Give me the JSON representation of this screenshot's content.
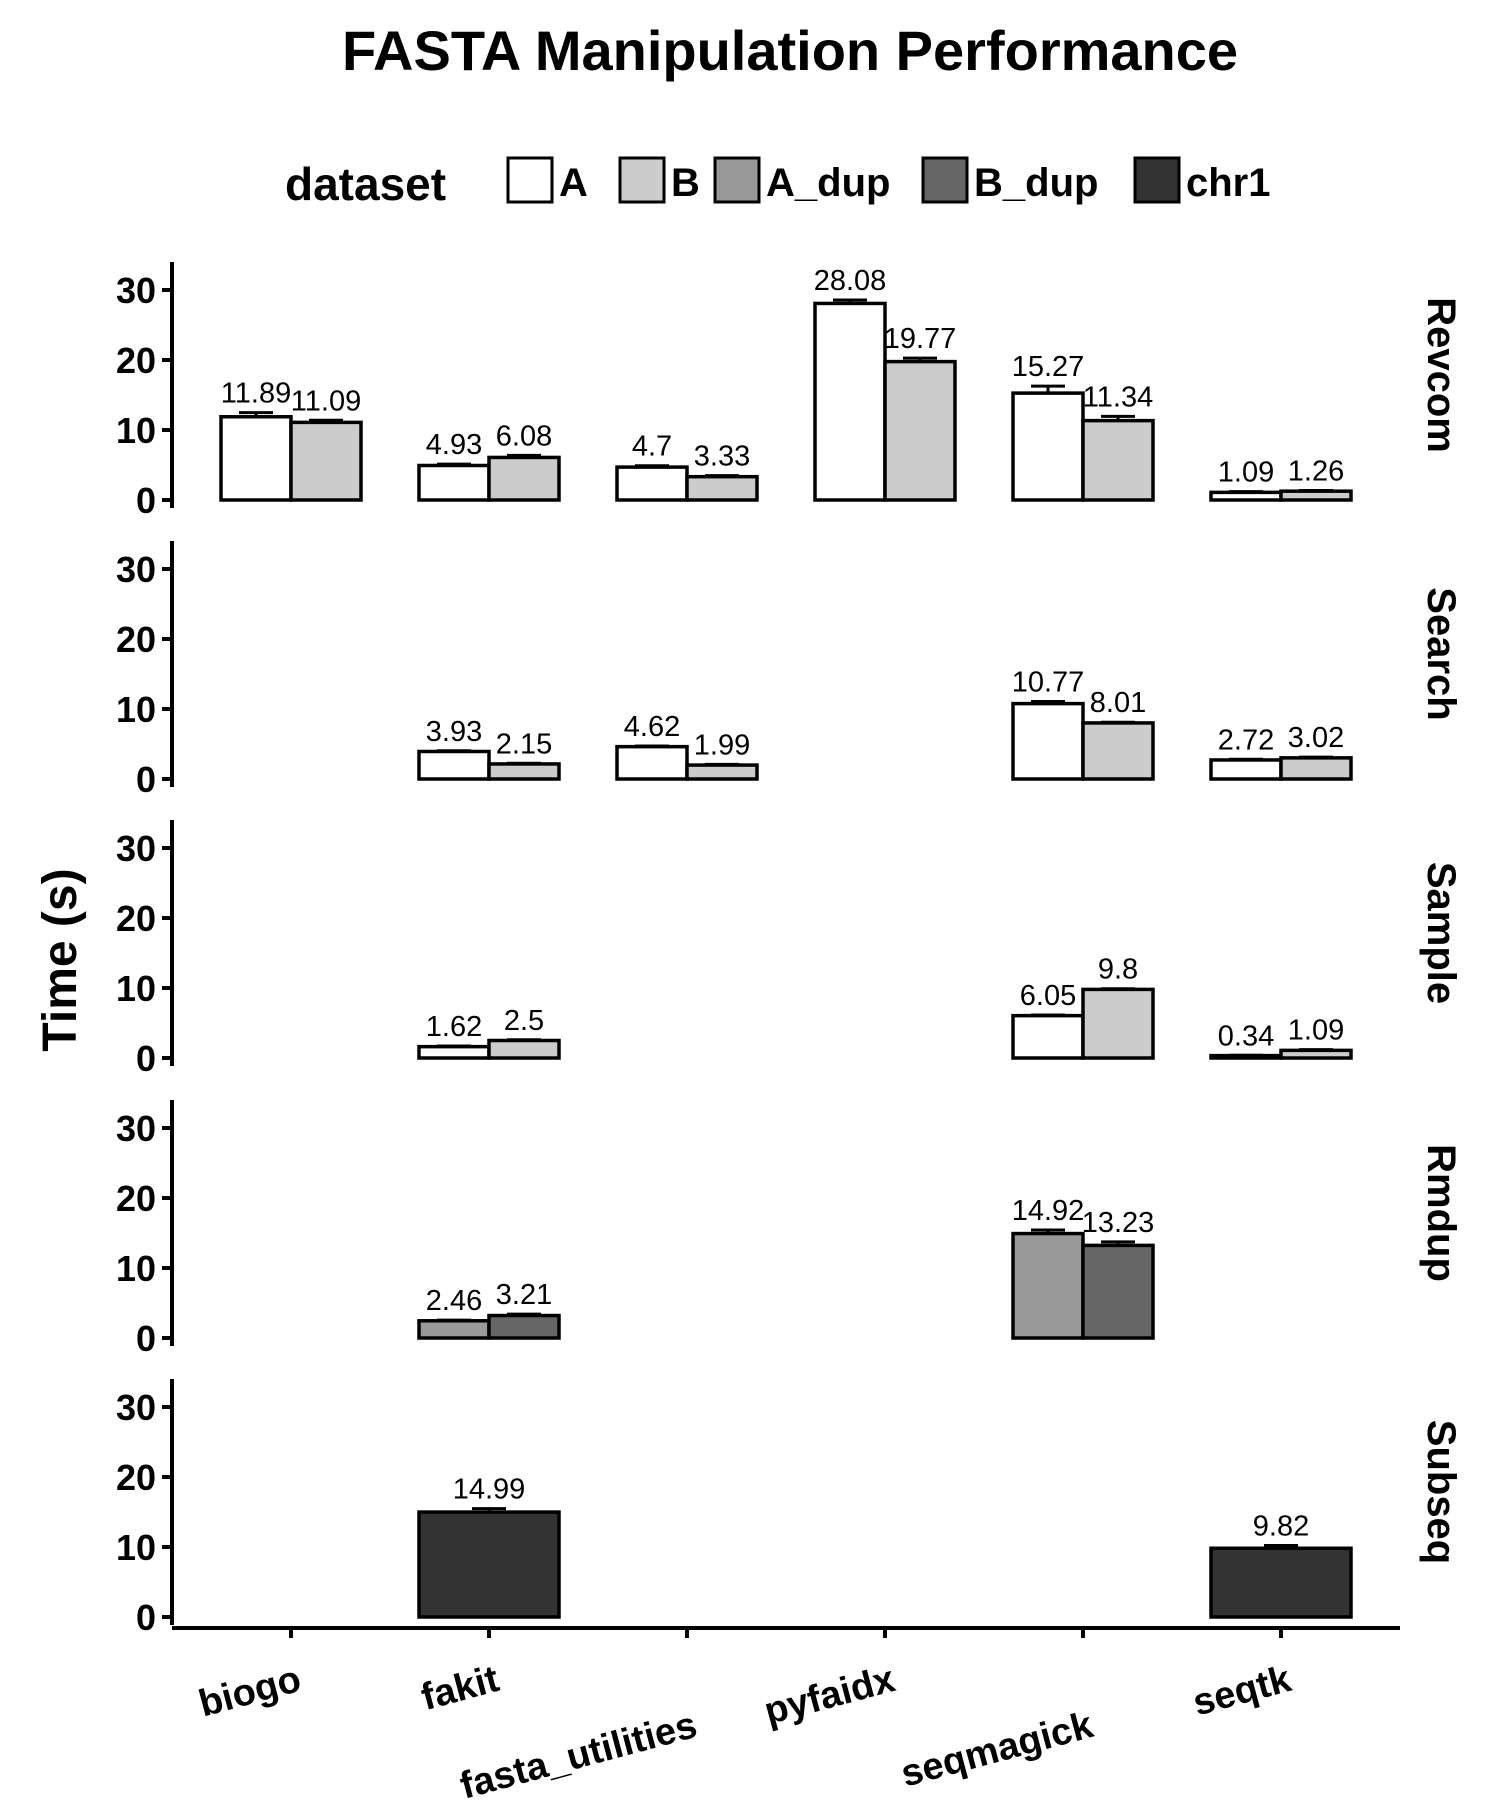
{
  "chart_data": {
    "type": "bar",
    "title": "FASTA Manipulation Performance",
    "ylabel": "Time (s)",
    "xlabel": "",
    "ylim": [
      0,
      34
    ],
    "yticks": [
      "0",
      "10",
      "20",
      "30"
    ],
    "categories": [
      "biogo",
      "fakit",
      "fasta_utilities",
      "pyfaidx",
      "seqmagick",
      "seqtk"
    ],
    "grid": false,
    "legend": {
      "title": "dataset",
      "placement": "top",
      "entries": [
        "A",
        "B",
        "A_dup",
        "B_dup",
        "chr1"
      ],
      "colors": [
        "#ffffff",
        "#cccccc",
        "#999999",
        "#666666",
        "#333333"
      ]
    },
    "panels": [
      {
        "name": "Revcom",
        "bars": [
          {
            "category": "biogo",
            "dataset": "A",
            "value": 11.89,
            "label": "11.89",
            "err": 0.6
          },
          {
            "category": "biogo",
            "dataset": "B",
            "value": 11.09,
            "label": "11.09",
            "err": 0.3
          },
          {
            "category": "fakit",
            "dataset": "A",
            "value": 4.93,
            "label": "4.93",
            "err": 0.2
          },
          {
            "category": "fakit",
            "dataset": "B",
            "value": 6.08,
            "label": "6.08",
            "err": 0.3
          },
          {
            "category": "fasta_utilities",
            "dataset": "A",
            "value": 4.7,
            "label": "4.7",
            "err": 0.2
          },
          {
            "category": "fasta_utilities",
            "dataset": "B",
            "value": 3.33,
            "label": "3.33",
            "err": 0.15
          },
          {
            "category": "pyfaidx",
            "dataset": "A",
            "value": 28.08,
            "label": "28.08",
            "err": 0.5
          },
          {
            "category": "pyfaidx",
            "dataset": "B",
            "value": 19.77,
            "label": "19.77",
            "err": 0.5
          },
          {
            "category": "seqmagick",
            "dataset": "A",
            "value": 15.27,
            "label": "15.27",
            "err": 1.0
          },
          {
            "category": "seqmagick",
            "dataset": "B",
            "value": 11.34,
            "label": "11.34",
            "err": 0.6
          },
          {
            "category": "seqtk",
            "dataset": "A",
            "value": 1.09,
            "label": "1.09",
            "err": 0.1
          },
          {
            "category": "seqtk",
            "dataset": "B",
            "value": 1.26,
            "label": "1.26",
            "err": 0.1
          }
        ]
      },
      {
        "name": "Search",
        "bars": [
          {
            "category": "fakit",
            "dataset": "A",
            "value": 3.93,
            "label": "3.93",
            "err": 0.1
          },
          {
            "category": "fakit",
            "dataset": "B",
            "value": 2.15,
            "label": "2.15",
            "err": 0.1
          },
          {
            "category": "fasta_utilities",
            "dataset": "A",
            "value": 4.62,
            "label": "4.62",
            "err": 0.1
          },
          {
            "category": "fasta_utilities",
            "dataset": "B",
            "value": 1.99,
            "label": "1.99",
            "err": 0.1
          },
          {
            "category": "seqmagick",
            "dataset": "A",
            "value": 10.77,
            "label": "10.77",
            "err": 0.3
          },
          {
            "category": "seqmagick",
            "dataset": "B",
            "value": 8.01,
            "label": "8.01",
            "err": 0.1
          },
          {
            "category": "seqtk",
            "dataset": "A",
            "value": 2.72,
            "label": "2.72",
            "err": 0.1
          },
          {
            "category": "seqtk",
            "dataset": "B",
            "value": 3.02,
            "label": "3.02",
            "err": 0.1
          }
        ]
      },
      {
        "name": "Sample",
        "bars": [
          {
            "category": "fakit",
            "dataset": "A",
            "value": 1.62,
            "label": "1.62",
            "err": 0.1
          },
          {
            "category": "fakit",
            "dataset": "B",
            "value": 2.5,
            "label": "2.5",
            "err": 0.1
          },
          {
            "category": "seqmagick",
            "dataset": "A",
            "value": 6.05,
            "label": "6.05",
            "err": 0.1
          },
          {
            "category": "seqmagick",
            "dataset": "B",
            "value": 9.8,
            "label": "9.8",
            "err": 0.1
          },
          {
            "category": "seqtk",
            "dataset": "A",
            "value": 0.34,
            "label": "0.34",
            "err": 0.05
          },
          {
            "category": "seqtk",
            "dataset": "B",
            "value": 1.09,
            "label": "1.09",
            "err": 0.1
          }
        ]
      },
      {
        "name": "Rmdup",
        "bars": [
          {
            "category": "fakit",
            "dataset": "A_dup",
            "value": 2.46,
            "label": "2.46",
            "err": 0.1
          },
          {
            "category": "fakit",
            "dataset": "B_dup",
            "value": 3.21,
            "label": "3.21",
            "err": 0.2
          },
          {
            "category": "seqmagick",
            "dataset": "A_dup",
            "value": 14.92,
            "label": "14.92",
            "err": 0.5
          },
          {
            "category": "seqmagick",
            "dataset": "B_dup",
            "value": 13.23,
            "label": "13.23",
            "err": 0.5
          }
        ]
      },
      {
        "name": "Subseq",
        "bars": [
          {
            "category": "fakit",
            "dataset": "chr1",
            "value": 14.99,
            "label": "14.99",
            "err": 0.5
          },
          {
            "category": "seqtk",
            "dataset": "chr1",
            "value": 9.82,
            "label": "9.82",
            "err": 0.4
          }
        ]
      }
    ]
  }
}
